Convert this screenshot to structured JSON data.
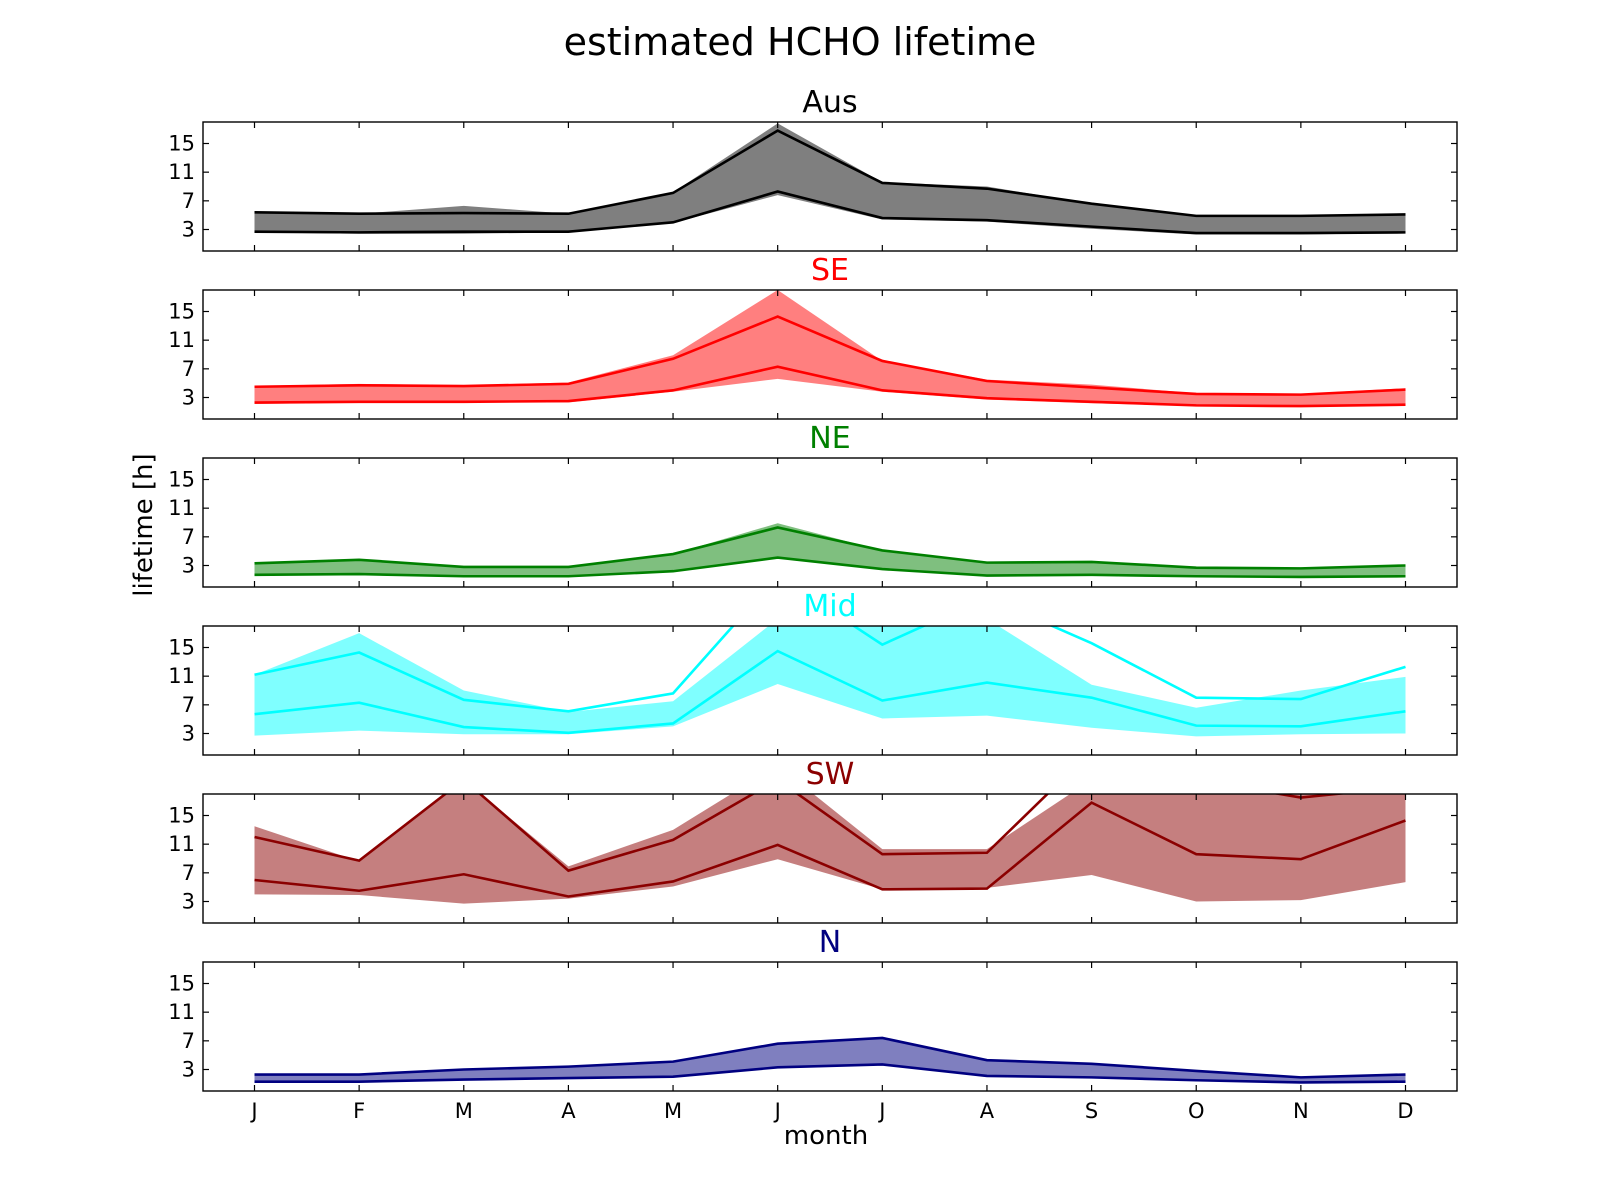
{
  "figure": {
    "title": "estimated HCHO lifetime",
    "ylabel": "lifetime [h]",
    "xlabel": "month"
  },
  "chart_data": [
    {
      "type": "area",
      "title": "Aus",
      "color": "#000000",
      "categories": [
        "J",
        "F",
        "M",
        "A",
        "M",
        "J",
        "J",
        "A",
        "S",
        "O",
        "N",
        "D"
      ],
      "yticks": [
        3,
        7,
        11,
        15
      ],
      "ylim": [
        0,
        18
      ],
      "shade_upper": [
        5.4,
        5.2,
        6.3,
        5.2,
        8.2,
        17.8,
        9.6,
        9.0,
        6.6,
        5.0,
        5.0,
        5.2
      ],
      "shade_lower": [
        2.6,
        2.4,
        2.4,
        2.6,
        3.9,
        7.8,
        4.4,
        4.1,
        3.1,
        2.3,
        2.3,
        2.5
      ],
      "line_upper": [
        5.4,
        5.2,
        5.3,
        5.2,
        8.1,
        16.8,
        9.5,
        8.7,
        6.6,
        4.9,
        4.9,
        5.1
      ],
      "line_lower": [
        2.7,
        2.6,
        2.7,
        2.7,
        4.0,
        8.3,
        4.6,
        4.3,
        3.4,
        2.5,
        2.5,
        2.6
      ]
    },
    {
      "type": "area",
      "title": "SE",
      "color": "#ff0000",
      "categories": [
        "J",
        "F",
        "M",
        "A",
        "M",
        "J",
        "J",
        "A",
        "S",
        "O",
        "N",
        "D"
      ],
      "yticks": [
        3,
        7,
        11,
        15
      ],
      "ylim": [
        0,
        18
      ],
      "shade_upper": [
        4.6,
        4.9,
        4.7,
        5.1,
        8.9,
        18.0,
        8.1,
        5.5,
        4.8,
        3.6,
        3.5,
        4.3
      ],
      "shade_lower": [
        2.1,
        2.3,
        2.3,
        2.3,
        3.8,
        5.6,
        3.8,
        2.7,
        2.2,
        1.8,
        1.7,
        1.9
      ],
      "line_upper": [
        4.5,
        4.7,
        4.6,
        4.9,
        8.4,
        14.3,
        8.1,
        5.3,
        4.4,
        3.5,
        3.4,
        4.1
      ],
      "line_lower": [
        2.3,
        2.4,
        2.4,
        2.5,
        4.0,
        7.3,
        4.0,
        2.9,
        2.4,
        1.9,
        1.8,
        2.0
      ]
    },
    {
      "type": "area",
      "title": "NE",
      "color": "#008000",
      "categories": [
        "J",
        "F",
        "M",
        "A",
        "M",
        "J",
        "J",
        "A",
        "S",
        "O",
        "N",
        "D"
      ],
      "yticks": [
        3,
        7,
        11,
        15
      ],
      "ylim": [
        0,
        18
      ],
      "shade_upper": [
        3.3,
        3.8,
        2.8,
        2.8,
        4.6,
        8.9,
        5.1,
        3.4,
        3.5,
        2.7,
        2.6,
        3.0
      ],
      "shade_lower": [
        1.7,
        1.8,
        1.5,
        1.5,
        2.2,
        4.0,
        2.5,
        1.6,
        1.7,
        1.5,
        1.4,
        1.5
      ],
      "line_upper": [
        3.3,
        3.8,
        2.8,
        2.8,
        4.6,
        8.3,
        5.1,
        3.4,
        3.5,
        2.7,
        2.6,
        3.0
      ],
      "line_lower": [
        1.7,
        1.8,
        1.5,
        1.5,
        2.2,
        4.1,
        2.5,
        1.6,
        1.7,
        1.5,
        1.4,
        1.5
      ]
    },
    {
      "type": "area",
      "title": "Mid",
      "color": "#00ffff",
      "categories": [
        "J",
        "F",
        "M",
        "A",
        "M",
        "J",
        "J",
        "A",
        "S",
        "O",
        "N",
        "D"
      ],
      "yticks": [
        3,
        7,
        11,
        15
      ],
      "ylim": [
        0,
        18
      ],
      "shade_upper": [
        11.2,
        17.0,
        9.0,
        6.0,
        7.5,
        19.0,
        19.0,
        19.0,
        9.8,
        6.6,
        9.0,
        10.9
      ],
      "shade_lower": [
        2.7,
        3.4,
        2.9,
        2.9,
        4.0,
        9.9,
        5.1,
        5.5,
        3.8,
        2.6,
        2.9,
        3.0
      ],
      "line_upper": [
        11.2,
        14.3,
        7.7,
        6.1,
        8.6,
        25.0,
        15.4,
        22.0,
        15.6,
        8.0,
        7.8,
        12.3
      ],
      "line_lower": [
        5.7,
        7.3,
        3.9,
        3.1,
        4.4,
        14.5,
        7.6,
        10.1,
        8.0,
        4.1,
        4.0,
        6.1
      ]
    },
    {
      "type": "area",
      "title": "SW",
      "color": "#8b0000",
      "categories": [
        "J",
        "F",
        "M",
        "A",
        "M",
        "J",
        "J",
        "A",
        "S",
        "O",
        "N",
        "D"
      ],
      "yticks": [
        3,
        7,
        11,
        15
      ],
      "ylim": [
        0,
        18
      ],
      "shade_upper": [
        13.5,
        8.6,
        20.0,
        7.9,
        13.0,
        22.0,
        10.3,
        10.3,
        20.0,
        20.0,
        20.0,
        18.0
      ],
      "shade_lower": [
        4.0,
        3.9,
        2.7,
        3.4,
        5.1,
        8.9,
        4.7,
        4.9,
        6.7,
        3.0,
        3.2,
        5.7
      ],
      "line_upper": [
        12.0,
        8.7,
        20.0,
        7.3,
        11.6,
        20.0,
        9.6,
        9.8,
        24.0,
        20.0,
        17.5,
        19.0
      ],
      "line_lower": [
        6.0,
        4.5,
        6.8,
        3.7,
        5.8,
        10.9,
        4.7,
        4.8,
        16.8,
        9.6,
        8.9,
        14.3
      ]
    },
    {
      "type": "area",
      "title": "N",
      "color": "#000080",
      "categories": [
        "J",
        "F",
        "M",
        "A",
        "M",
        "J",
        "J",
        "A",
        "S",
        "O",
        "N",
        "D"
      ],
      "yticks": [
        3,
        7,
        11,
        15
      ],
      "ylim": [
        0,
        18
      ],
      "shade_upper": [
        2.3,
        2.3,
        3.0,
        3.4,
        4.1,
        6.6,
        7.4,
        4.3,
        3.8,
        2.8,
        1.9,
        2.3
      ],
      "shade_lower": [
        1.3,
        1.3,
        1.6,
        1.8,
        2.0,
        3.3,
        3.7,
        2.1,
        1.9,
        1.5,
        1.2,
        1.3
      ],
      "line_upper": [
        2.3,
        2.3,
        3.0,
        3.4,
        4.1,
        6.6,
        7.4,
        4.3,
        3.8,
        2.8,
        1.9,
        2.3
      ],
      "line_lower": [
        1.3,
        1.3,
        1.6,
        1.8,
        2.0,
        3.3,
        3.7,
        2.1,
        1.9,
        1.5,
        1.2,
        1.3
      ]
    }
  ]
}
